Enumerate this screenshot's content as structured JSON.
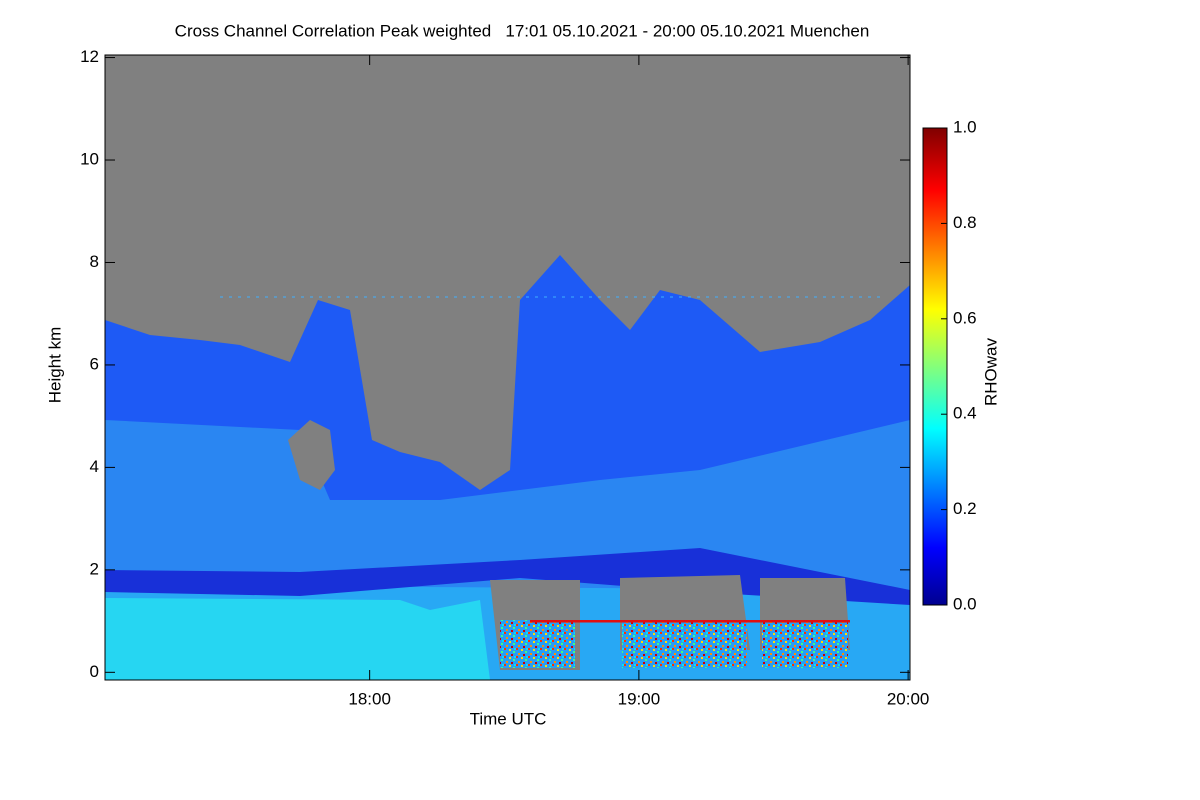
{
  "chart_data": {
    "type": "heatmap",
    "title": "Cross Channel Correlation Peak weighted   17:01 05.10.2021 - 20:00 05.10.2021 Muenchen",
    "x_label": "Time UTC",
    "y_label": "Height km",
    "colorbar_label": "RHOwav",
    "xlim": [
      17.017,
      20.007
    ],
    "xticks": [
      {
        "value": 18,
        "label": "18:00"
      },
      {
        "value": 19,
        "label": "19:00"
      },
      {
        "value": 20,
        "label": "20:00"
      }
    ],
    "ylim": [
      -0.15,
      12.05
    ],
    "yticks": [
      0,
      2,
      4,
      6,
      8,
      10,
      12
    ],
    "clim": [
      0,
      1
    ],
    "cticks": [
      {
        "value": 0,
        "label": "0.0"
      },
      {
        "value": 0.2,
        "label": "0.2"
      },
      {
        "value": 0.4,
        "label": "0.4"
      },
      {
        "value": 0.6,
        "label": "0.6"
      },
      {
        "value": 0.8,
        "label": "0.8"
      },
      {
        "value": 1,
        "label": "1.0"
      }
    ],
    "colormap": "jet"
  }
}
